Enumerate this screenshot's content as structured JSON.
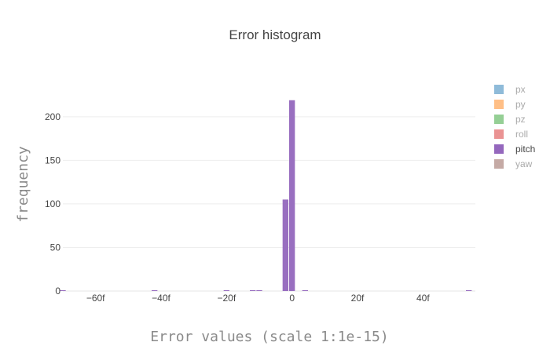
{
  "chart_data": {
    "type": "bar",
    "title": "Error histogram",
    "xlabel": "Error values (scale 1:1e-15)",
    "ylabel": "frequency",
    "xlim": [
      -70,
      56
    ],
    "ylim": [
      0,
      235
    ],
    "x_ticks": [
      {
        "value": -60,
        "label": "−60f"
      },
      {
        "value": -40,
        "label": "−40f"
      },
      {
        "value": -20,
        "label": "−20f"
      },
      {
        "value": 0,
        "label": "0"
      },
      {
        "value": 20,
        "label": "20f"
      },
      {
        "value": 40,
        "label": "40f"
      }
    ],
    "y_ticks": [
      0,
      50,
      100,
      150,
      200
    ],
    "bin_width": 2,
    "grid": true,
    "legend_position": "right",
    "series": [
      {
        "name": "px",
        "color": "#1f77b4",
        "visible": false
      },
      {
        "name": "py",
        "color": "#ff7f0e",
        "visible": false
      },
      {
        "name": "pz",
        "color": "#2ca02c",
        "visible": false
      },
      {
        "name": "roll",
        "color": "#d62728",
        "visible": false
      },
      {
        "name": "pitch",
        "color": "#9467bd",
        "visible": true,
        "bins": [
          {
            "x": -70,
            "y": 1
          },
          {
            "x": -42,
            "y": 1
          },
          {
            "x": -20,
            "y": 1
          },
          {
            "x": -12,
            "y": 1
          },
          {
            "x": -10,
            "y": 1
          },
          {
            "x": -2,
            "y": 105
          },
          {
            "x": 0,
            "y": 219
          },
          {
            "x": 4,
            "y": 1
          },
          {
            "x": 54,
            "y": 1
          }
        ]
      },
      {
        "name": "yaw",
        "color": "#8c564b",
        "visible": false
      }
    ]
  }
}
